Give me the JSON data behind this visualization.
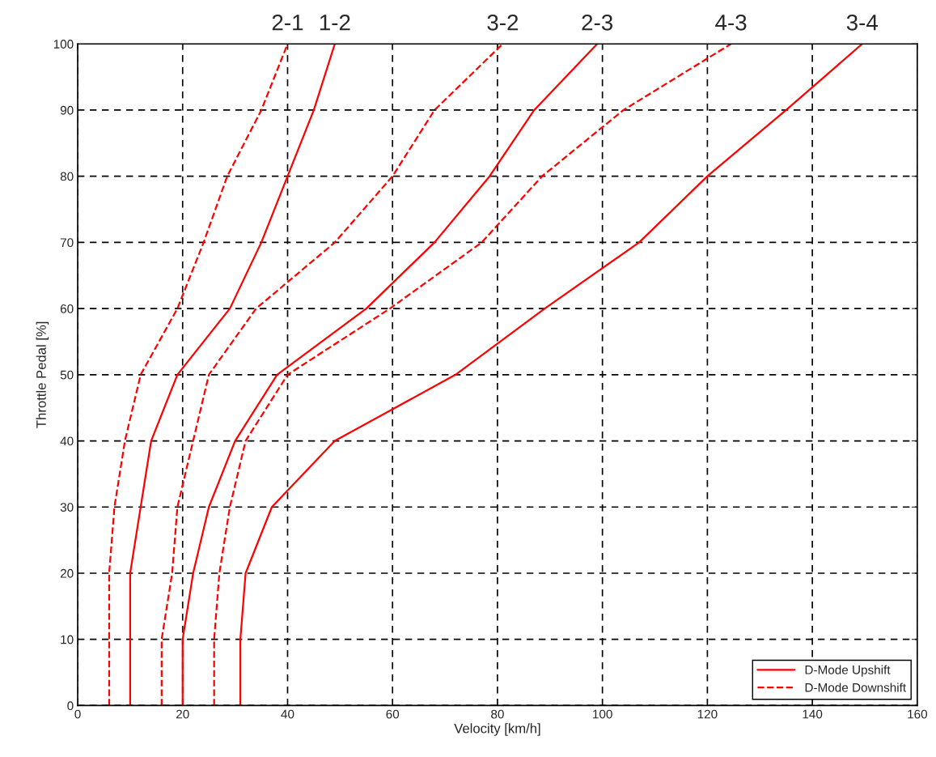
{
  "chart_data": {
    "type": "line",
    "xlabel": "Velocity [km/h]",
    "ylabel": "Throttle Pedal [%]",
    "xlim": [
      0,
      160
    ],
    "xticks": [
      0,
      20,
      40,
      60,
      80,
      100,
      120,
      140,
      160
    ],
    "ylim": [
      0,
      100
    ],
    "yticks": [
      0,
      10,
      20,
      30,
      40,
      50,
      60,
      70,
      80,
      90,
      100
    ],
    "grid": true,
    "legend": "bottom right",
    "series": [
      {
        "x": [
          6,
          6,
          6,
          7,
          9,
          12,
          19,
          24,
          28.5,
          35,
          40
        ],
        "values": [
          0,
          10,
          20,
          30,
          40,
          50,
          60,
          70,
          80,
          90,
          100
        ],
        "color": "#ff0000",
        "line_style": "dashed"
      },
      {
        "name": "D-Mode Upshift",
        "x": [
          10,
          10,
          10,
          12,
          14,
          19,
          29,
          35,
          40,
          45,
          49
        ],
        "values": [
          0,
          10,
          20,
          30,
          40,
          50,
          60,
          70,
          80,
          90,
          100
        ],
        "color": "#ff0000",
        "line_style": "solid"
      },
      {
        "name": "D-Mode Downshift",
        "x": [
          16,
          16,
          18,
          19,
          22,
          25,
          34,
          49,
          60,
          68,
          81
        ],
        "values": [
          0,
          10,
          20,
          30,
          40,
          50,
          60,
          70,
          80,
          90,
          100
        ],
        "color": "#ff0000",
        "line_style": "dashed"
      },
      {
        "x": [
          20,
          20,
          22,
          25,
          30,
          38,
          55,
          68,
          78.5,
          87,
          99
        ],
        "values": [
          0,
          10,
          20,
          30,
          40,
          50,
          60,
          70,
          80,
          90,
          100
        ],
        "color": "#ff0000",
        "line_style": "solid"
      },
      {
        "x": [
          26,
          26,
          27,
          29,
          32,
          40,
          59.5,
          77,
          88.5,
          104,
          124.5
        ],
        "values": [
          0,
          10,
          20,
          30,
          40,
          50,
          60,
          70,
          80,
          90,
          100
        ],
        "color": "#ff0000",
        "line_style": "dashed"
      },
      {
        "x": [
          31,
          31,
          32,
          37,
          49,
          72,
          89,
          107,
          120,
          135,
          149.5
        ],
        "values": [
          0,
          10,
          20,
          30,
          40,
          50,
          60,
          70,
          80,
          90,
          100
        ],
        "color": "#ff0000",
        "line_style": "solid"
      }
    ],
    "annotations": [
      {
        "text": "2-1",
        "x": 40,
        "y": 100
      },
      {
        "text": "1-2",
        "x": 49,
        "y": 100
      },
      {
        "text": "3-2",
        "x": 81,
        "y": 100
      },
      {
        "text": "2-3",
        "x": 99,
        "y": 100
      },
      {
        "text": "4-3",
        "x": 124.5,
        "y": 100
      },
      {
        "text": "3-4",
        "x": 149.5,
        "y": 100
      }
    ]
  }
}
